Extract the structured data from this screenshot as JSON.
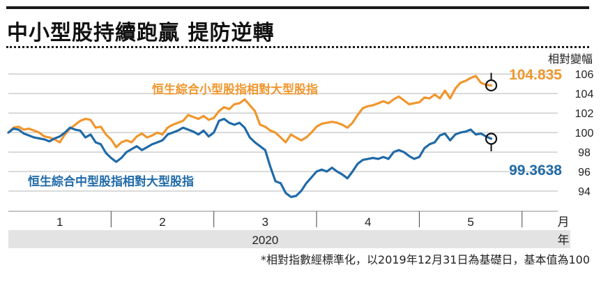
{
  "headline": "中小型股持續跑贏 提防逆轉",
  "footnote": "*相對指數經標準化，以2019年12月31日為基礎日，基本值為100",
  "chart_data": {
    "type": "line",
    "title": "中小型股持續跑贏 提防逆轉",
    "ylabel": "相對變幅",
    "ylim": [
      92.5,
      107.3
    ],
    "yticks": [
      94,
      96,
      98,
      100,
      102,
      104,
      106
    ],
    "xlim": [
      0,
      5.47
    ],
    "month_ticks": [
      {
        "x": 0.5,
        "label": "1"
      },
      {
        "x": 1.5,
        "label": "2"
      },
      {
        "x": 2.5,
        "label": "3"
      },
      {
        "x": 3.5,
        "label": "4"
      },
      {
        "x": 4.5,
        "label": "5"
      }
    ],
    "month_unit": "月",
    "year_label": "2020",
    "year_unit": "年",
    "grid": true,
    "series": [
      {
        "name": "恒生綜合小型股指相對大型股指",
        "color": "#f0962d",
        "last_value": 104.835,
        "last_label": "104.835",
        "points": [
          [
            0.0,
            100.0
          ],
          [
            0.05,
            100.5
          ],
          [
            0.1,
            100.6
          ],
          [
            0.15,
            100.3
          ],
          [
            0.2,
            100.4
          ],
          [
            0.25,
            100.2
          ],
          [
            0.3,
            100.0
          ],
          [
            0.35,
            99.6
          ],
          [
            0.4,
            99.5
          ],
          [
            0.45,
            99.3
          ],
          [
            0.5,
            99.0
          ],
          [
            0.55,
            99.8
          ],
          [
            0.6,
            100.4
          ],
          [
            0.65,
            100.8
          ],
          [
            0.7,
            101.2
          ],
          [
            0.75,
            101.4
          ],
          [
            0.8,
            101.3
          ],
          [
            0.85,
            100.5
          ],
          [
            0.9,
            100.6
          ],
          [
            0.95,
            99.8
          ],
          [
            1.0,
            99.3
          ],
          [
            1.05,
            98.5
          ],
          [
            1.1,
            99.0
          ],
          [
            1.15,
            99.2
          ],
          [
            1.2,
            99.0
          ],
          [
            1.25,
            99.6
          ],
          [
            1.3,
            99.9
          ],
          [
            1.35,
            99.5
          ],
          [
            1.4,
            99.7
          ],
          [
            1.45,
            100.0
          ],
          [
            1.5,
            99.8
          ],
          [
            1.55,
            100.5
          ],
          [
            1.6,
            100.8
          ],
          [
            1.65,
            101.0
          ],
          [
            1.7,
            101.2
          ],
          [
            1.75,
            101.8
          ],
          [
            1.8,
            101.6
          ],
          [
            1.85,
            101.4
          ],
          [
            1.9,
            101.7
          ],
          [
            1.95,
            101.3
          ],
          [
            2.0,
            101.5
          ],
          [
            2.05,
            102.2
          ],
          [
            2.1,
            102.6
          ],
          [
            2.15,
            102.4
          ],
          [
            2.2,
            102.9
          ],
          [
            2.25,
            103.0
          ],
          [
            2.3,
            103.4
          ],
          [
            2.35,
            102.8
          ],
          [
            2.4,
            102.2
          ],
          [
            2.45,
            100.8
          ],
          [
            2.5,
            100.6
          ],
          [
            2.55,
            100.2
          ],
          [
            2.6,
            100.0
          ],
          [
            2.65,
            99.5
          ],
          [
            2.7,
            99.0
          ],
          [
            2.75,
            99.8
          ],
          [
            2.8,
            99.5
          ],
          [
            2.85,
            99.2
          ],
          [
            2.9,
            99.5
          ],
          [
            2.95,
            100.0
          ],
          [
            3.0,
            100.6
          ],
          [
            3.05,
            100.9
          ],
          [
            3.1,
            101.0
          ],
          [
            3.15,
            101.1
          ],
          [
            3.2,
            101.0
          ],
          [
            3.25,
            100.8
          ],
          [
            3.3,
            100.5
          ],
          [
            3.35,
            101.0
          ],
          [
            3.4,
            101.8
          ],
          [
            3.45,
            102.5
          ],
          [
            3.5,
            102.7
          ],
          [
            3.55,
            102.8
          ],
          [
            3.6,
            103.0
          ],
          [
            3.65,
            103.2
          ],
          [
            3.7,
            103.0
          ],
          [
            3.75,
            103.4
          ],
          [
            3.8,
            103.7
          ],
          [
            3.85,
            103.3
          ],
          [
            3.9,
            102.9
          ],
          [
            3.95,
            103.0
          ],
          [
            4.0,
            103.1
          ],
          [
            4.05,
            103.6
          ],
          [
            4.1,
            103.5
          ],
          [
            4.15,
            103.9
          ],
          [
            4.2,
            103.5
          ],
          [
            4.25,
            104.3
          ],
          [
            4.3,
            103.5
          ],
          [
            4.35,
            104.5
          ],
          [
            4.4,
            105.1
          ],
          [
            4.45,
            105.3
          ],
          [
            4.5,
            105.6
          ],
          [
            4.55,
            105.8
          ],
          [
            4.6,
            105.1
          ],
          [
            4.65,
            104.9
          ],
          [
            4.7,
            104.835
          ]
        ]
      },
      {
        "name": "恒生綜合中型股指相對大型股指",
        "color": "#1f6aa8",
        "last_value": 99.3638,
        "last_label": "99.3638",
        "points": [
          [
            0.0,
            100.0
          ],
          [
            0.05,
            100.4
          ],
          [
            0.1,
            100.3
          ],
          [
            0.15,
            99.9
          ],
          [
            0.2,
            99.7
          ],
          [
            0.25,
            99.5
          ],
          [
            0.3,
            99.4
          ],
          [
            0.35,
            99.3
          ],
          [
            0.4,
            99.1
          ],
          [
            0.45,
            99.4
          ],
          [
            0.5,
            99.6
          ],
          [
            0.55,
            100.0
          ],
          [
            0.6,
            100.5
          ],
          [
            0.65,
            100.3
          ],
          [
            0.7,
            100.2
          ],
          [
            0.75,
            99.5
          ],
          [
            0.8,
            99.8
          ],
          [
            0.85,
            99.0
          ],
          [
            0.9,
            98.8
          ],
          [
            0.95,
            97.9
          ],
          [
            1.0,
            97.4
          ],
          [
            1.05,
            97.0
          ],
          [
            1.1,
            97.4
          ],
          [
            1.15,
            98.0
          ],
          [
            1.2,
            98.3
          ],
          [
            1.25,
            98.6
          ],
          [
            1.3,
            98.2
          ],
          [
            1.35,
            98.5
          ],
          [
            1.4,
            98.8
          ],
          [
            1.45,
            99.0
          ],
          [
            1.5,
            99.2
          ],
          [
            1.55,
            99.8
          ],
          [
            1.6,
            100.0
          ],
          [
            1.65,
            100.2
          ],
          [
            1.7,
            100.5
          ],
          [
            1.75,
            100.3
          ],
          [
            1.8,
            100.1
          ],
          [
            1.85,
            99.8
          ],
          [
            1.9,
            100.2
          ],
          [
            1.95,
            99.6
          ],
          [
            2.0,
            100.0
          ],
          [
            2.05,
            101.2
          ],
          [
            2.1,
            101.4
          ],
          [
            2.15,
            101.0
          ],
          [
            2.2,
            100.8
          ],
          [
            2.25,
            101.0
          ],
          [
            2.3,
            100.5
          ],
          [
            2.35,
            99.5
          ],
          [
            2.4,
            99.0
          ],
          [
            2.45,
            98.6
          ],
          [
            2.5,
            98.2
          ],
          [
            2.55,
            96.5
          ],
          [
            2.6,
            95.0
          ],
          [
            2.65,
            94.8
          ],
          [
            2.7,
            93.8
          ],
          [
            2.75,
            93.4
          ],
          [
            2.8,
            93.5
          ],
          [
            2.85,
            94.0
          ],
          [
            2.9,
            94.8
          ],
          [
            2.95,
            95.4
          ],
          [
            3.0,
            96.0
          ],
          [
            3.05,
            96.2
          ],
          [
            3.1,
            96.0
          ],
          [
            3.15,
            96.4
          ],
          [
            3.2,
            96.0
          ],
          [
            3.25,
            95.7
          ],
          [
            3.3,
            95.3
          ],
          [
            3.35,
            96.0
          ],
          [
            3.4,
            96.8
          ],
          [
            3.45,
            97.2
          ],
          [
            3.5,
            97.3
          ],
          [
            3.55,
            97.4
          ],
          [
            3.6,
            97.3
          ],
          [
            3.65,
            97.5
          ],
          [
            3.7,
            97.3
          ],
          [
            3.75,
            98.0
          ],
          [
            3.8,
            98.2
          ],
          [
            3.85,
            98.0
          ],
          [
            3.9,
            97.6
          ],
          [
            3.95,
            97.3
          ],
          [
            4.0,
            97.5
          ],
          [
            4.05,
            98.4
          ],
          [
            4.1,
            98.8
          ],
          [
            4.15,
            99.0
          ],
          [
            4.2,
            99.7
          ],
          [
            4.25,
            99.9
          ],
          [
            4.3,
            99.2
          ],
          [
            4.35,
            99.8
          ],
          [
            4.4,
            100.0
          ],
          [
            4.45,
            100.1
          ],
          [
            4.5,
            100.3
          ],
          [
            4.55,
            99.8
          ],
          [
            4.6,
            99.9
          ],
          [
            4.65,
            99.6
          ],
          [
            4.7,
            99.3638
          ]
        ]
      }
    ]
  }
}
